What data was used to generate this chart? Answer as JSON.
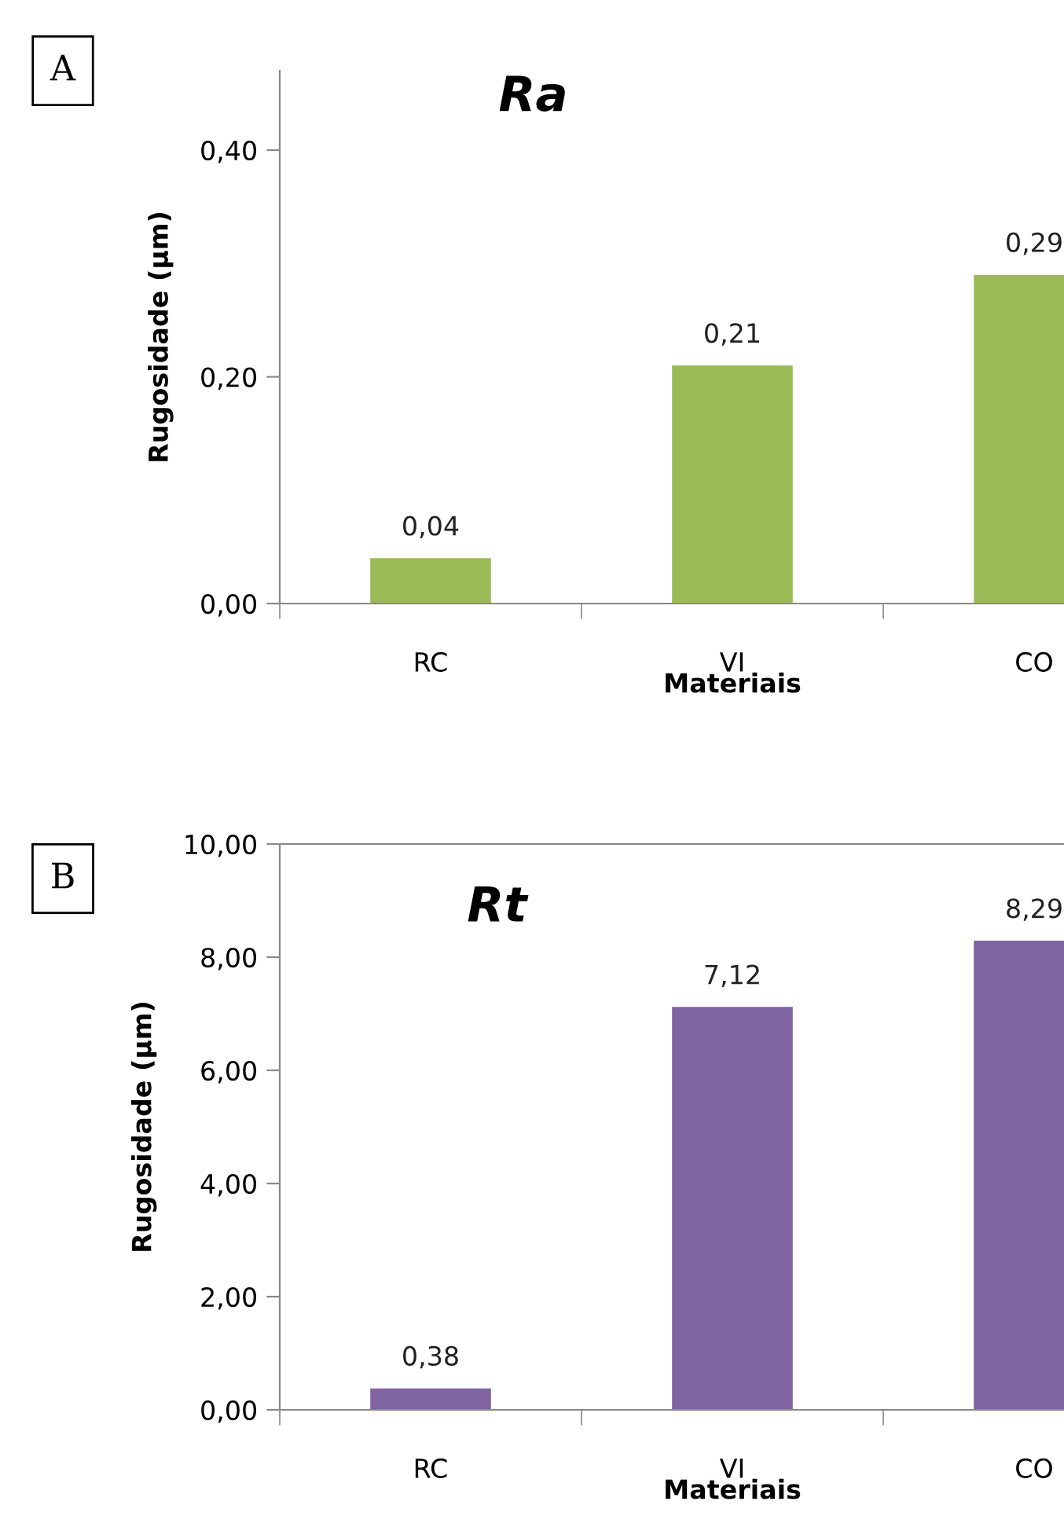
{
  "chart_data": [
    {
      "type": "bar",
      "title": "Ra",
      "xlabel": "Materiais",
      "ylabel": "Rugosidade (µm)",
      "categories": [
        "RC",
        "VI",
        "CO"
      ],
      "values": [
        0.04,
        0.21,
        0.29
      ],
      "color": "#9bbb59",
      "value_labels": [
        "0,04",
        "0,21",
        "0,29"
      ],
      "ylim": [
        0,
        0.47
      ],
      "yticks": [
        {
          "value": 0,
          "label": "0,00"
        },
        {
          "value": 0.2,
          "label": "0,20"
        },
        {
          "value": 0.4,
          "label": "0,40"
        }
      ],
      "grid": false,
      "annotations": [
        "A"
      ]
    },
    {
      "type": "bar",
      "title": "Rt",
      "xlabel": "Materiais",
      "ylabel": "Rugosidade (µm)",
      "categories": [
        "RC",
        "VI",
        "CO"
      ],
      "values": [
        0.38,
        7.12,
        8.29
      ],
      "color": "#8064a2",
      "value_labels": [
        "0,38",
        "7,12",
        "8,29"
      ],
      "ylim": [
        0,
        10
      ],
      "yticks": [
        {
          "value": 0,
          "label": "0,00"
        },
        {
          "value": 2,
          "label": "2,00"
        },
        {
          "value": 4,
          "label": "4,00"
        },
        {
          "value": 6,
          "label": "6,00"
        },
        {
          "value": 8,
          "label": "8,00"
        },
        {
          "value": 10,
          "label": "10,00"
        }
      ],
      "grid": false,
      "annotations": [
        "B"
      ]
    }
  ]
}
